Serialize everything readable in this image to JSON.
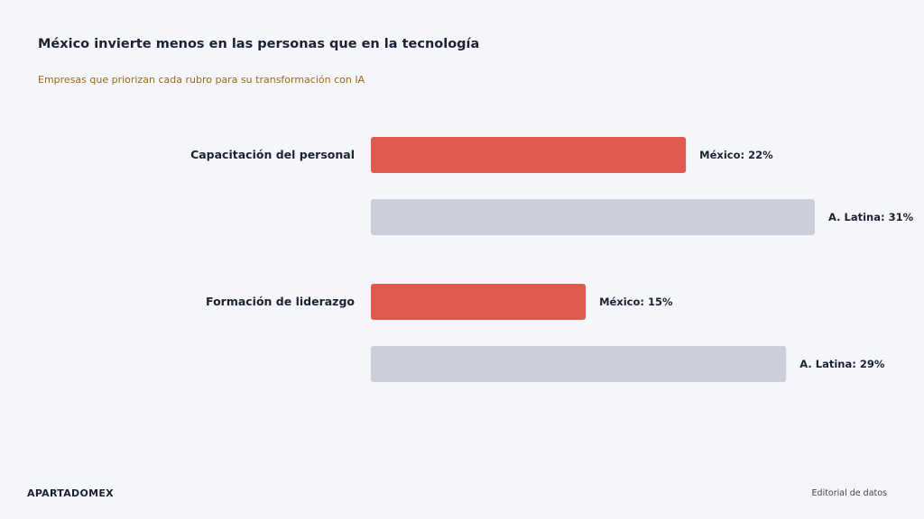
{
  "header": {
    "title": "México invierte menos en las personas que en la tecnología",
    "subtitle": "Empresas que priorizan cada rubro para su transformación con IA"
  },
  "footer": {
    "brand": "APARTADOMEX",
    "note": "Editorial de datos"
  },
  "colors": {
    "mexico": "#e05a50",
    "latam": "#c9ceda",
    "text": "#1a2233"
  },
  "chart_data": {
    "type": "bar",
    "orientation": "horizontal",
    "categories": [
      "Capacitación del personal",
      "Formación de liderazgo"
    ],
    "series": [
      {
        "name": "México",
        "values": [
          22,
          15
        ],
        "labels": [
          "México: 22%",
          "México: 15%"
        ]
      },
      {
        "name": "A. Latina",
        "values": [
          31,
          29
        ],
        "labels": [
          "A. Latina: 31%",
          "A. Latina: 29%"
        ]
      }
    ],
    "unit": "%",
    "grid": false,
    "legend": "none"
  }
}
